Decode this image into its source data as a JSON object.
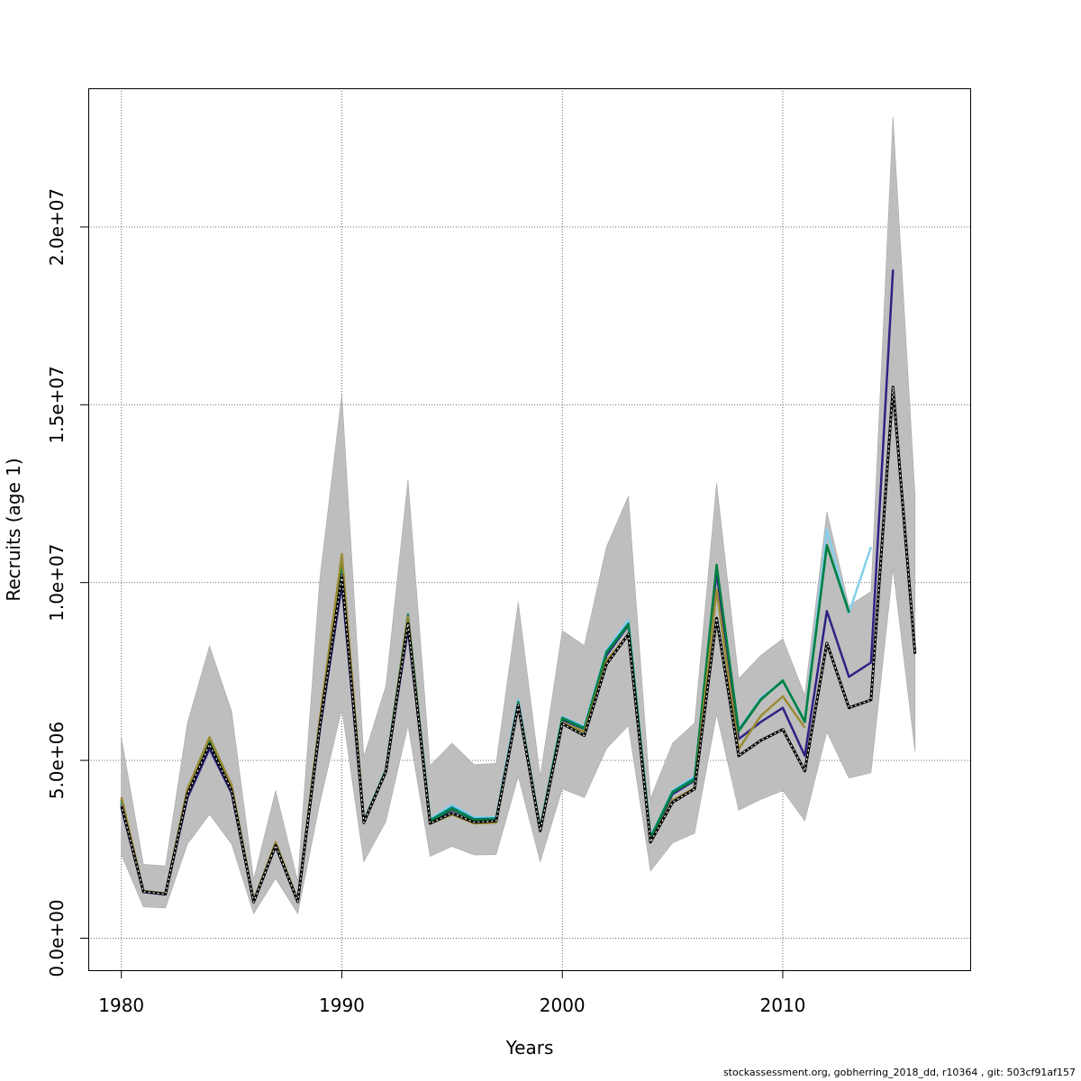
{
  "chart_data": {
    "type": "line",
    "xlabel": "Years",
    "ylabel": "Recruits (age 1)",
    "xlim": [
      1978.5,
      2018.5
    ],
    "ylim": [
      -900000,
      23900000
    ],
    "x_ticks": [
      1980,
      1990,
      2000,
      2010
    ],
    "x_tick_labels": [
      "1980",
      "1990",
      "2000",
      "2010"
    ],
    "y_ticks": [
      0,
      5000000,
      10000000,
      15000000,
      20000000
    ],
    "y_tick_labels": [
      "0.0e+00",
      "5.0e+06",
      "1.0e+07",
      "1.5e+07",
      "2.0e+07"
    ],
    "grid": true,
    "band": {
      "color": "#bebebe",
      "x": [
        1980,
        1981,
        1982,
        1983,
        1984,
        1985,
        1986,
        1987,
        1988,
        1989,
        1990,
        1991,
        1992,
        1993,
        1994,
        1995,
        1996,
        1997,
        1998,
        1999,
        2000,
        2001,
        2002,
        2003,
        2004,
        2005,
        2006,
        2007,
        2008,
        2009,
        2010,
        2011,
        2012,
        2013,
        2014,
        2015,
        2016
      ],
      "lower": [
        2350000,
        880000,
        850000,
        2650000,
        3480000,
        2650000,
        690000,
        1680000,
        690000,
        3800000,
        6450000,
        2150000,
        3280000,
        5980000,
        2300000,
        2580000,
        2340000,
        2350000,
        4550000,
        2150000,
        4200000,
        3950000,
        5330000,
        5980000,
        1890000,
        2680000,
        2950000,
        6300000,
        3600000,
        3900000,
        4150000,
        3300000,
        5800000,
        4500000,
        4650000,
        10400000,
        5250000
      ],
      "upper": [
        5650000,
        2080000,
        2030000,
        6050000,
        8220000,
        6380000,
        1650000,
        4150000,
        1600000,
        10100000,
        15300000,
        5100000,
        7100000,
        12900000,
        4850000,
        5480000,
        4880000,
        4920000,
        9450000,
        4550000,
        8650000,
        8230000,
        11000000,
        12430000,
        3930000,
        5480000,
        6050000,
        12800000,
        7300000,
        7950000,
        8420000,
        6830000,
        12000000,
        9350000,
        9750000,
        23100000,
        12450000
      ]
    },
    "series": [
      {
        "color": "#87ceeb",
        "dash": false,
        "x": [
          1980,
          1981,
          1982,
          1983,
          1984,
          1985,
          1986,
          1987,
          1988,
          1989,
          1990,
          1991,
          1992,
          1993,
          1994,
          1995,
          1996,
          1997,
          1998,
          1999,
          2000,
          2001,
          2002,
          2003,
          2004,
          2005,
          2006,
          2007,
          2008,
          2009,
          2010,
          2011,
          2012,
          2013,
          2014
        ],
        "values": [
          3850000,
          1330000,
          1270000,
          4150000,
          5550000,
          4270000,
          1050000,
          2660000,
          1060000,
          6100000,
          10500000,
          3300000,
          4750000,
          9080000,
          3350000,
          3750000,
          3400000,
          3400000,
          6700000,
          3100000,
          6220000,
          5950000,
          8100000,
          8950000,
          2850000,
          4150000,
          4550000,
          10450000,
          5850000,
          6750000,
          7250000,
          6120000,
          11500000,
          9150000,
          11000000
        ]
      },
      {
        "color": "#008b8b",
        "dash": false,
        "x": [
          1980,
          1981,
          1982,
          1983,
          1984,
          1985,
          1986,
          1987,
          1988,
          1989,
          1990,
          1991,
          1992,
          1993,
          1994,
          1995,
          1996,
          1997,
          1998,
          1999,
          2000,
          2001,
          2002,
          2003,
          2004,
          2005,
          2006,
          2007,
          2008,
          2009,
          2010,
          2011,
          2012,
          2013
        ],
        "values": [
          3820000,
          1320000,
          1260000,
          4130000,
          5520000,
          4250000,
          1040000,
          2650000,
          1055000,
          6080000,
          10450000,
          3280000,
          4730000,
          9060000,
          3320000,
          3680000,
          3350000,
          3370000,
          6650000,
          3080000,
          6200000,
          5920000,
          8050000,
          8850000,
          2830000,
          4120000,
          4500000,
          10450000,
          5850000,
          6720000,
          7230000,
          6100000,
          11050000,
          9150000
        ]
      },
      {
        "color": "#2e2285",
        "dash": false,
        "x": [
          1980,
          1981,
          1982,
          1983,
          1984,
          1985,
          1986,
          1987,
          1988,
          1989,
          1990,
          1991,
          1992,
          1993,
          1994,
          1995,
          1996,
          1997,
          1998,
          1999,
          2000,
          2001,
          2002,
          2003,
          2004,
          2005,
          2006,
          2007,
          2008,
          2009,
          2010,
          2011,
          2012,
          2013,
          2014,
          2015
        ],
        "values": [
          3680000,
          1300000,
          1230000,
          3950000,
          5330000,
          4080000,
          1010000,
          2580000,
          1020000,
          5850000,
          9950000,
          3240000,
          4680000,
          8700000,
          3260000,
          3620000,
          3330000,
          3340000,
          6560000,
          3050000,
          6140000,
          5880000,
          7950000,
          8800000,
          2760000,
          4050000,
          4430000,
          10300000,
          5600000,
          6080000,
          6480000,
          5130000,
          9200000,
          7350000,
          7750000,
          18800000
        ]
      },
      {
        "color": "#008040",
        "dash": false,
        "x": [
          1980,
          1981,
          1982,
          1983,
          1984,
          1985,
          1986,
          1987,
          1988,
          1989,
          1990,
          1991,
          1992,
          1993,
          1994,
          1995,
          1996,
          1997,
          1998,
          1999,
          2000,
          2001,
          2002,
          2003,
          2004,
          2005,
          2006,
          2007,
          2008,
          2009,
          2010,
          2011,
          2012,
          2013
        ],
        "values": [
          3900000,
          1320000,
          1250000,
          4140000,
          5560000,
          4250000,
          1040000,
          2650000,
          1050000,
          6100000,
          10600000,
          3290000,
          4730000,
          9100000,
          3290000,
          3640000,
          3320000,
          3340000,
          6600000,
          3080000,
          6180000,
          5890000,
          8020000,
          8820000,
          2800000,
          4100000,
          4450000,
          10500000,
          5820000,
          6700000,
          7250000,
          6080000,
          11050000,
          9180000
        ]
      },
      {
        "color": "#9a8b34",
        "dash": false,
        "x": [
          1980,
          1981,
          1982,
          1983,
          1984,
          1985,
          1986,
          1987,
          1988,
          1989,
          1990,
          1991,
          1992,
          1993,
          1994,
          1995,
          1996,
          1997,
          1998,
          1999,
          2000,
          2001,
          2002,
          2003,
          2004,
          2005,
          2006,
          2007,
          2008,
          2009,
          2010,
          2011
        ],
        "values": [
          3970000,
          1330000,
          1260000,
          4200000,
          5650000,
          4300000,
          1050000,
          2700000,
          1060000,
          6150000,
          10800000,
          3270000,
          4700000,
          9050000,
          3220000,
          3480000,
          3230000,
          3250000,
          6580000,
          3030000,
          6060000,
          5800000,
          7800000,
          8550000,
          2700000,
          3880000,
          4220000,
          9800000,
          5320000,
          6250000,
          6800000,
          5920000
        ]
      },
      {
        "color": "#000000",
        "dash": true,
        "x": [
          1980,
          1981,
          1982,
          1983,
          1984,
          1985,
          1986,
          1987,
          1988,
          1989,
          1990,
          1991,
          1992,
          1993,
          1994,
          1995,
          1996,
          1997,
          1998,
          1999,
          2000,
          2001,
          2002,
          2003,
          2004,
          2005,
          2006,
          2007,
          2008,
          2009,
          2010,
          2011,
          2012,
          2013,
          2014,
          2015,
          2016
        ],
        "values": [
          3750000,
          1310000,
          1240000,
          4050000,
          5450000,
          4150000,
          1020000,
          2610000,
          1030000,
          5950000,
          10200000,
          3250000,
          4690000,
          8850000,
          3230000,
          3520000,
          3260000,
          3300000,
          6550000,
          3020000,
          6030000,
          5700000,
          7700000,
          8550000,
          2700000,
          3820000,
          4200000,
          9000000,
          5130000,
          5560000,
          5870000,
          4700000,
          8300000,
          6480000,
          6700000,
          15500000,
          8000000
        ]
      }
    ]
  },
  "footer": "stockassessment.org, gobherring_2018_dd, r10364 , git: 503cf91af157"
}
